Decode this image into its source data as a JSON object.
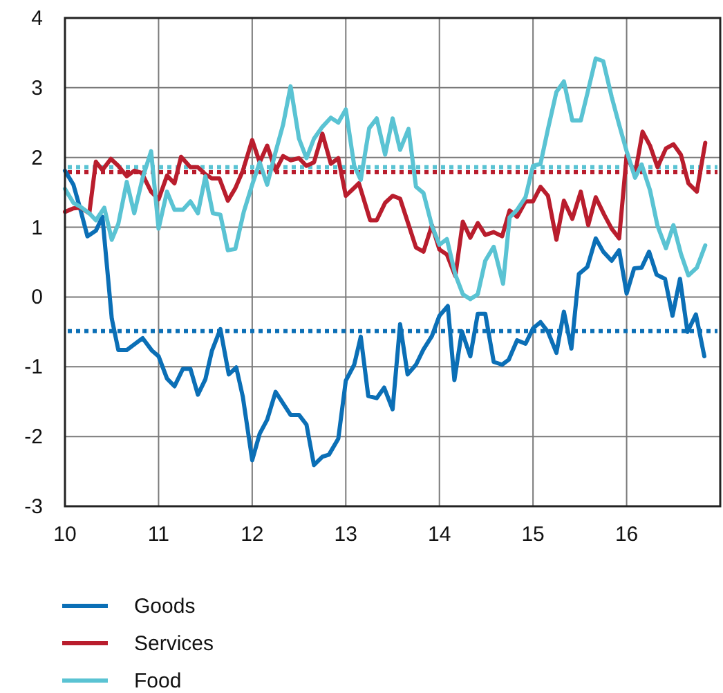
{
  "chart_data": {
    "type": "line",
    "xlim": [
      10,
      17
    ],
    "xticks": [
      10,
      11,
      12,
      13,
      14,
      15,
      16
    ],
    "ylim": [
      -3,
      4
    ],
    "yticks": [
      -3,
      -2,
      -1,
      0,
      1,
      2,
      3,
      4
    ],
    "grid": true,
    "legend": "bottom",
    "marker": "none",
    "line_style": "solid",
    "series": [
      {
        "name": "Goods",
        "color": "#0b6fb6",
        "x": [
          10.0,
          10.09,
          10.16,
          10.24,
          10.33,
          10.4,
          10.45,
          10.5,
          10.57,
          10.66,
          10.83,
          10.93,
          11.0,
          11.09,
          11.17,
          11.26,
          11.34,
          11.42,
          11.5,
          11.57,
          11.66,
          11.75,
          11.83,
          11.9,
          12.0,
          12.08,
          12.16,
          12.25,
          12.41,
          12.5,
          12.58,
          12.66,
          12.75,
          12.82,
          12.92,
          13.0,
          13.09,
          13.16,
          13.24,
          13.33,
          13.41,
          13.5,
          13.58,
          13.66,
          13.75,
          13.83,
          13.92,
          14.0,
          14.09,
          14.16,
          14.24,
          14.33,
          14.41,
          14.49,
          14.58,
          14.67,
          14.74,
          14.83,
          14.92,
          15.0,
          15.08,
          15.16,
          15.25,
          15.33,
          15.41,
          15.49,
          15.58,
          15.67,
          15.75,
          15.84,
          15.92,
          16.0,
          16.08,
          16.16,
          16.24,
          16.32,
          16.41,
          16.49,
          16.57,
          16.65,
          16.74,
          16.83
        ],
        "values": [
          1.81,
          1.61,
          1.28,
          0.87,
          0.95,
          1.15,
          0.42,
          -0.31,
          -0.76,
          -0.76,
          -0.59,
          -0.77,
          -0.85,
          -1.17,
          -1.28,
          -1.03,
          -1.03,
          -1.4,
          -1.18,
          -0.77,
          -0.46,
          -1.11,
          -1.01,
          -1.43,
          -2.34,
          -1.96,
          -1.76,
          -1.36,
          -1.69,
          -1.69,
          -1.83,
          -2.41,
          -2.29,
          -2.26,
          -2.03,
          -1.2,
          -0.97,
          -0.57,
          -1.42,
          -1.45,
          -1.3,
          -1.61,
          -0.39,
          -1.11,
          -0.97,
          -0.75,
          -0.56,
          -0.27,
          -0.13,
          -1.19,
          -0.49,
          -0.85,
          -0.24,
          -0.24,
          -0.93,
          -0.97,
          -0.9,
          -0.62,
          -0.67,
          -0.45,
          -0.36,
          -0.5,
          -0.8,
          -0.21,
          -0.74,
          0.33,
          0.43,
          0.84,
          0.65,
          0.52,
          0.67,
          0.05,
          0.41,
          0.42,
          0.65,
          0.32,
          0.26,
          -0.27,
          0.26,
          -0.5,
          -0.25,
          -0.85
        ]
      },
      {
        "name": "Services",
        "color": "#b91d2d",
        "x": [
          10.0,
          10.09,
          10.17,
          10.26,
          10.33,
          10.4,
          10.49,
          10.57,
          10.66,
          10.74,
          10.82,
          10.92,
          11.0,
          11.09,
          11.17,
          11.24,
          11.34,
          11.42,
          11.5,
          11.57,
          11.65,
          11.74,
          11.82,
          11.9,
          12.0,
          12.08,
          12.16,
          12.25,
          12.33,
          12.41,
          12.5,
          12.58,
          12.66,
          12.75,
          12.84,
          12.92,
          13.0,
          13.14,
          13.26,
          13.33,
          13.42,
          13.5,
          13.58,
          13.66,
          13.75,
          13.83,
          13.92,
          14.0,
          14.08,
          14.17,
          14.25,
          14.33,
          14.41,
          14.49,
          14.58,
          14.67,
          14.75,
          14.83,
          14.92,
          15.0,
          15.08,
          15.16,
          15.25,
          15.33,
          15.42,
          15.51,
          15.59,
          15.67,
          15.76,
          15.84,
          15.92,
          16.0,
          16.09,
          16.17,
          16.25,
          16.33,
          16.42,
          16.5,
          16.58,
          16.66,
          16.75,
          16.84
        ],
        "values": [
          1.22,
          1.27,
          1.28,
          1.2,
          1.94,
          1.82,
          1.98,
          1.88,
          1.73,
          1.81,
          1.78,
          1.51,
          1.4,
          1.74,
          1.63,
          2.01,
          1.86,
          1.86,
          1.76,
          1.7,
          1.7,
          1.38,
          1.56,
          1.81,
          2.25,
          1.93,
          2.17,
          1.81,
          2.02,
          1.96,
          1.99,
          1.88,
          1.93,
          2.34,
          1.91,
          1.99,
          1.45,
          1.63,
          1.1,
          1.1,
          1.35,
          1.45,
          1.41,
          1.08,
          0.71,
          0.65,
          1.03,
          0.68,
          0.61,
          0.3,
          1.08,
          0.85,
          1.06,
          0.89,
          0.93,
          0.87,
          1.24,
          1.15,
          1.37,
          1.37,
          1.58,
          1.45,
          0.82,
          1.38,
          1.12,
          1.51,
          1.03,
          1.43,
          1.18,
          0.98,
          0.84,
          2.03,
          1.76,
          2.37,
          2.17,
          1.86,
          2.13,
          2.19,
          2.04,
          1.63,
          1.51,
          2.21
        ]
      },
      {
        "name": "Food",
        "color": "#5ac3d3",
        "x": [
          10.0,
          10.09,
          10.17,
          10.26,
          10.33,
          10.42,
          10.5,
          10.57,
          10.66,
          10.74,
          10.83,
          10.92,
          11.0,
          11.09,
          11.17,
          11.26,
          11.34,
          11.42,
          11.5,
          11.58,
          11.66,
          11.74,
          11.82,
          11.91,
          12.0,
          12.08,
          12.16,
          12.25,
          12.33,
          12.41,
          12.5,
          12.58,
          12.66,
          12.75,
          12.84,
          12.92,
          13.0,
          13.09,
          13.16,
          13.25,
          13.33,
          13.42,
          13.5,
          13.58,
          13.67,
          13.75,
          13.83,
          13.92,
          14.0,
          14.08,
          14.17,
          14.25,
          14.33,
          14.41,
          14.49,
          14.58,
          14.68,
          14.75,
          14.83,
          14.92,
          15.0,
          15.08,
          15.16,
          15.25,
          15.33,
          15.42,
          15.51,
          15.59,
          15.67,
          15.75,
          15.84,
          15.92,
          16.0,
          16.09,
          16.16,
          16.25,
          16.33,
          16.42,
          16.5,
          16.58,
          16.66,
          16.75,
          16.84
        ],
        "values": [
          1.55,
          1.35,
          1.29,
          1.2,
          1.1,
          1.28,
          0.82,
          1.05,
          1.65,
          1.2,
          1.71,
          2.09,
          0.98,
          1.51,
          1.25,
          1.25,
          1.37,
          1.2,
          1.73,
          1.2,
          1.18,
          0.67,
          0.69,
          1.22,
          1.61,
          1.93,
          1.61,
          2.08,
          2.47,
          3.02,
          2.27,
          1.99,
          2.27,
          2.44,
          2.57,
          2.5,
          2.69,
          1.88,
          1.68,
          2.42,
          2.56,
          2.04,
          2.56,
          2.11,
          2.41,
          1.58,
          1.49,
          1.02,
          0.75,
          0.83,
          0.32,
          0.04,
          -0.03,
          0.04,
          0.52,
          0.72,
          0.19,
          1.14,
          1.25,
          1.43,
          1.88,
          1.91,
          2.41,
          2.94,
          3.09,
          2.53,
          2.53,
          2.97,
          3.42,
          3.38,
          2.87,
          2.47,
          2.09,
          1.71,
          1.9,
          1.53,
          1.02,
          0.7,
          1.03,
          0.62,
          0.31,
          0.42,
          0.74
        ]
      }
    ],
    "ref_lines": [
      {
        "axis": "y",
        "value": 1.86,
        "color": "#5ac3d3",
        "line_style": "dotted"
      },
      {
        "axis": "y",
        "value": 1.79,
        "color": "#b91d2d",
        "line_style": "dotted"
      },
      {
        "axis": "y",
        "value": -0.49,
        "color": "#0b6fb6",
        "line_style": "dotted"
      }
    ]
  }
}
